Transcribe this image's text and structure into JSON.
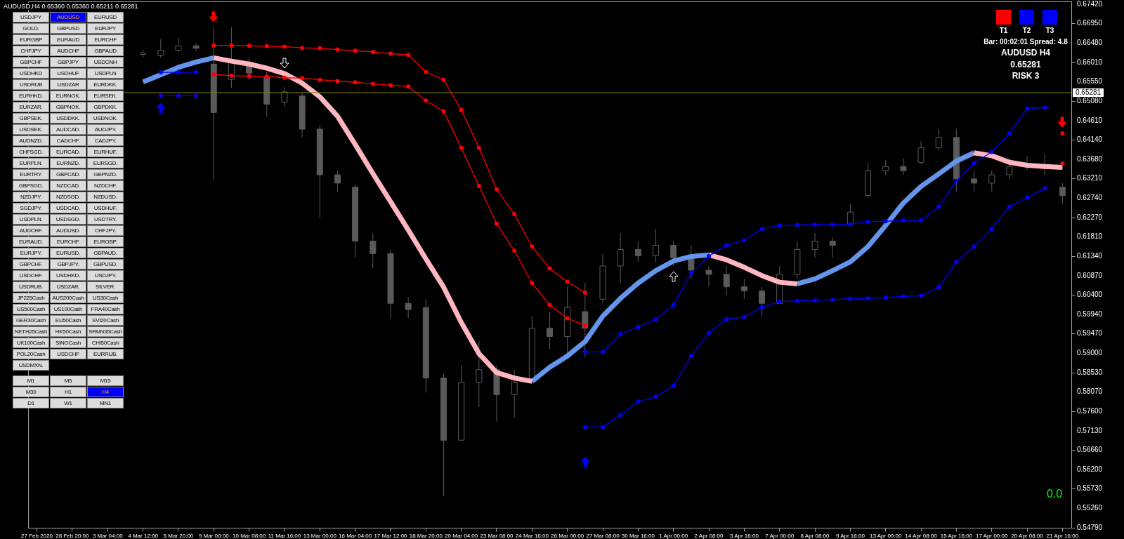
{
  "chart_data": {
    "type": "candlestick",
    "title": "AUDUSD,H4 0.65360 0.65360 0.65211 0.65281",
    "color": "#5a5a5a",
    "categories": [
      "27 Feb 2020",
      null,
      "28 Feb 20:00",
      null,
      "3 Mar 04:00",
      null,
      "4 Mar 12:00",
      null,
      "5 Mar 20:00",
      null,
      "9 Mar 00:00",
      null,
      "10 Mar 08:00",
      null,
      "11 Mar 16:00",
      null,
      "13 Mar 00:00",
      null,
      "16 Mar 04:00",
      null,
      "17 Mar 12:00",
      null,
      "18 Mar 20:00",
      null,
      "20 Mar 04:00",
      null,
      "23 Mar 08:00",
      null,
      "24 Mar 16:00",
      null,
      "26 Mar 00:00",
      null,
      "27 Mar 08:00",
      null,
      "30 Mar 16:00",
      null,
      "1 Apr 00:00",
      null,
      "2 Apr 08:00",
      null,
      "3 Apr 16:00",
      null,
      "7 Apr 00:00",
      null,
      "8 Apr 08:00",
      null,
      "9 Apr 16:00",
      null,
      "13 Apr 00:00",
      null,
      "14 Apr 08:00",
      null,
      "15 Apr 16:00",
      null,
      "17 Apr 00:00",
      null,
      "20 Apr 08:00",
      null,
      "21 Apr 16:00"
    ],
    "ohlc": [
      null,
      null,
      null,
      null,
      null,
      null,
      [
        0.662,
        0.6632,
        0.6612,
        0.6624
      ],
      [
        0.6618,
        0.6657,
        0.6612,
        0.663
      ],
      [
        0.663,
        0.666,
        0.6625,
        0.6641
      ],
      [
        0.6641,
        0.6648,
        0.6628,
        0.6635
      ],
      [
        0.6597,
        0.6686,
        0.6318,
        0.648
      ],
      [
        0.656,
        0.6686,
        0.654,
        0.66
      ],
      [
        0.66,
        0.6612,
        0.6558,
        0.6575
      ],
      [
        0.6565,
        0.6578,
        0.647,
        0.65
      ],
      [
        0.6505,
        0.6542,
        0.6495,
        0.653
      ],
      [
        0.652,
        0.6528,
        0.642,
        0.644
      ],
      [
        0.644,
        0.645,
        0.6227,
        0.633
      ],
      [
        0.633,
        0.634,
        0.629,
        0.631
      ],
      [
        0.63,
        0.6305,
        0.613,
        0.617
      ],
      [
        0.617,
        0.619,
        0.6105,
        0.614
      ],
      [
        0.614,
        0.615,
        0.5985,
        0.602
      ],
      [
        0.602,
        0.6035,
        0.5985,
        0.6005
      ],
      [
        0.601,
        0.603,
        0.5805,
        0.584
      ],
      [
        0.584,
        0.585,
        0.5555,
        0.569
      ],
      [
        0.569,
        0.587,
        0.569,
        0.583
      ],
      [
        0.583,
        0.593,
        0.577,
        0.586
      ],
      [
        0.586,
        0.587,
        0.5735,
        0.58
      ],
      [
        0.58,
        0.586,
        0.5745,
        0.583
      ],
      [
        0.5835,
        0.599,
        0.583,
        0.596
      ],
      [
        0.596,
        0.6,
        0.591,
        0.594
      ],
      [
        0.594,
        0.606,
        0.59,
        0.601
      ],
      [
        0.6,
        0.607,
        0.589,
        0.596
      ],
      [
        0.603,
        0.614,
        0.602,
        0.611
      ],
      [
        0.611,
        0.619,
        0.607,
        0.615
      ],
      [
        0.615,
        0.617,
        0.612,
        0.6135
      ],
      [
        0.6135,
        0.62,
        0.612,
        0.616
      ],
      [
        0.616,
        0.617,
        0.611,
        0.613
      ],
      [
        0.613,
        0.616,
        0.608,
        0.61
      ],
      [
        0.61,
        0.611,
        0.606,
        0.609
      ],
      [
        0.609,
        0.611,
        0.604,
        0.606
      ],
      [
        0.606,
        0.608,
        0.603,
        0.605
      ],
      [
        0.605,
        0.606,
        0.599,
        0.602
      ],
      [
        0.602,
        0.611,
        0.602,
        0.609
      ],
      [
        0.609,
        0.617,
        0.608,
        0.615
      ],
      [
        0.615,
        0.619,
        0.613,
        0.617
      ],
      [
        0.617,
        0.618,
        0.613,
        0.616
      ],
      [
        0.621,
        0.626,
        0.621,
        0.624
      ],
      [
        0.628,
        0.636,
        0.6275,
        0.634
      ],
      [
        0.634,
        0.6365,
        0.633,
        0.635
      ],
      [
        0.635,
        0.637,
        0.633,
        0.634
      ],
      [
        0.636,
        0.641,
        0.6355,
        0.6395
      ],
      [
        0.6395,
        0.644,
        0.639,
        0.642
      ],
      [
        0.642,
        0.644,
        0.629,
        0.632
      ],
      [
        0.632,
        0.634,
        0.629,
        0.631
      ],
      [
        0.631,
        0.634,
        0.629,
        0.633
      ],
      [
        0.633,
        0.637,
        0.632,
        0.635
      ],
      [
        0.635,
        0.6375,
        0.634,
        0.6355
      ],
      [
        0.6355,
        0.638,
        0.633,
        0.6345
      ],
      [
        0.63,
        0.631,
        0.626,
        0.628
      ]
    ],
    "series": [
      {
        "type": "line",
        "color": "#6495ed",
        "values": [
          null,
          null,
          null,
          null,
          null,
          null,
          0.6554,
          0.6571,
          0.6589,
          0.6602,
          0.6612,
          null,
          null,
          null,
          null,
          null,
          null,
          null,
          null,
          null,
          null,
          null,
          null,
          null,
          null,
          null,
          null,
          null,
          0.5832,
          0.5866,
          0.5893,
          0.5928,
          0.5989,
          0.6032,
          0.6069,
          0.6099,
          0.6122,
          0.6133,
          0.6137,
          null,
          null,
          null,
          null,
          0.6067,
          0.6079,
          0.6099,
          0.612,
          0.6157,
          0.6208,
          0.6262,
          0.6302,
          0.6332,
          0.6363,
          0.6383,
          null,
          null,
          null,
          null,
          null
        ]
      },
      {
        "type": "line",
        "color": "#ffb6c1",
        "values": [
          null,
          null,
          null,
          null,
          null,
          null,
          null,
          null,
          null,
          null,
          0.6612,
          0.6604,
          0.6597,
          0.6587,
          0.6574,
          0.6551,
          0.6518,
          0.6471,
          0.6403,
          0.6333,
          0.6265,
          0.6197,
          0.6127,
          0.6059,
          0.5974,
          0.5899,
          0.5853,
          0.584,
          0.5832,
          null,
          null,
          null,
          null,
          null,
          null,
          null,
          null,
          null,
          0.6137,
          0.6125,
          0.6107,
          0.6087,
          0.6071,
          0.6067,
          null,
          null,
          null,
          null,
          null,
          null,
          null,
          null,
          null,
          0.6383,
          0.6376,
          0.636,
          0.6353,
          0.635,
          0.6348
        ]
      },
      {
        "type": "line",
        "color": "#ff0000",
        "marker": "circle",
        "values": [
          null,
          null,
          null,
          null,
          null,
          null,
          null,
          null,
          null,
          null,
          0.6642,
          0.6642,
          0.6641,
          0.664,
          0.6639,
          0.6636,
          0.6635,
          0.6632,
          0.6629,
          0.6626,
          0.6622,
          0.6619,
          0.6578,
          0.6559,
          0.6486,
          0.6395,
          0.6295,
          0.6235,
          0.6157,
          0.6104,
          0.6072,
          0.6046,
          null,
          null,
          null,
          null,
          null,
          null,
          null,
          null,
          null,
          null,
          null,
          null,
          null,
          null,
          null,
          null,
          null,
          null,
          null,
          null,
          null,
          null,
          null,
          null,
          null,
          null,
          0.643
        ]
      },
      {
        "type": "line",
        "color": "#ff0000",
        "marker": "circle",
        "values": [
          null,
          null,
          null,
          null,
          null,
          null,
          null,
          null,
          null,
          null,
          0.6572,
          0.6569,
          0.6568,
          0.6567,
          0.6564,
          0.6563,
          0.6559,
          0.6556,
          0.6553,
          0.6549,
          0.6546,
          0.6543,
          0.6509,
          0.6483,
          0.6395,
          0.6303,
          0.6212,
          0.6147,
          0.6069,
          0.6016,
          0.5984,
          0.5967,
          null,
          null,
          null,
          null,
          null,
          null,
          null,
          null,
          null,
          null,
          null,
          null,
          null,
          null,
          null,
          null,
          null,
          null,
          null,
          null,
          null,
          null,
          null,
          null,
          null,
          null,
          0.6357
        ]
      },
      {
        "type": "line",
        "color": "#0000ff",
        "marker": "circle",
        "values": [
          null,
          null,
          null,
          null,
          null,
          null,
          null,
          0.6577,
          0.6577,
          0.6577,
          null,
          null,
          null,
          null,
          null,
          null,
          null,
          null,
          null,
          null,
          null,
          null,
          null,
          null,
          null,
          null,
          null,
          null,
          null,
          null,
          null,
          0.5903,
          0.5903,
          0.5946,
          0.5963,
          0.5981,
          0.6016,
          0.6094,
          0.6134,
          0.616,
          0.6172,
          0.62,
          0.6208,
          0.6209,
          0.621,
          0.621,
          0.6211,
          0.6217,
          0.6218,
          0.622,
          0.622,
          0.6253,
          0.6315,
          0.6358,
          0.6385,
          0.643,
          0.649,
          0.6492,
          null
        ]
      },
      {
        "type": "line",
        "color": "#0000ff",
        "marker": "circle",
        "values": [
          null,
          null,
          null,
          null,
          null,
          null,
          null,
          0.6521,
          0.6521,
          0.6521,
          null,
          null,
          null,
          null,
          null,
          null,
          null,
          null,
          null,
          null,
          null,
          null,
          null,
          null,
          null,
          null,
          null,
          null,
          null,
          null,
          null,
          0.5722,
          0.5722,
          0.5751,
          0.5783,
          0.5795,
          0.5821,
          0.5893,
          0.5949,
          0.5982,
          0.5987,
          0.6011,
          0.6024,
          0.6026,
          0.6027,
          0.6029,
          0.6031,
          0.6032,
          0.6034,
          0.6037,
          0.6038,
          0.6059,
          0.612,
          0.6157,
          0.62,
          0.6253,
          0.6275,
          0.6297,
          null
        ]
      }
    ],
    "ylim": [
      0.5479,
      0.6748
    ],
    "yticks": [
      {
        "value": 0.6742,
        "label": "0.67420"
      },
      {
        "value": 0.6695,
        "label": "0.66950"
      },
      {
        "value": 0.6648,
        "label": "0.66480"
      },
      {
        "value": 0.6601,
        "label": "0.66010"
      },
      {
        "value": 0.6555,
        "label": "0.65550"
      },
      {
        "value": 0.6508,
        "label": "0.65080"
      },
      {
        "value": 0.6461,
        "label": "0.64610"
      },
      {
        "value": 0.6414,
        "label": "0.64140"
      },
      {
        "value": 0.6368,
        "label": "0.63680"
      },
      {
        "value": 0.6321,
        "label": "0.63210"
      },
      {
        "value": 0.6274,
        "label": "0.62740"
      },
      {
        "value": 0.6227,
        "label": "0.62270"
      },
      {
        "value": 0.6181,
        "label": "0.61810"
      },
      {
        "value": 0.6134,
        "label": "0.61340"
      },
      {
        "value": 0.6087,
        "label": "0.60870"
      },
      {
        "value": 0.604,
        "label": "0.60400"
      },
      {
        "value": 0.5994,
        "label": "0.59940"
      },
      {
        "value": 0.5947,
        "label": "0.59470"
      },
      {
        "value": 0.59,
        "label": "0.59000"
      },
      {
        "value": 0.5853,
        "label": "0.58530"
      },
      {
        "value": 0.5807,
        "label": "0.58070"
      },
      {
        "value": 0.576,
        "label": "0.57600"
      },
      {
        "value": 0.5713,
        "label": "0.57130"
      },
      {
        "value": 0.5666,
        "label": "0.56660"
      },
      {
        "value": 0.562,
        "label": "0.56200"
      },
      {
        "value": 0.5573,
        "label": "0.55730"
      },
      {
        "value": 0.5526,
        "label": "0.55260"
      },
      {
        "value": 0.5479,
        "label": "0.54790"
      }
    ],
    "ref_lines": [
      {
        "axis": "y",
        "value": 0.65281,
        "label": "0.65281",
        "color": "#808000"
      }
    ],
    "annotations": [
      "T1",
      "T2",
      "T3",
      "Bar: 00:02:01 Spread: 4.8",
      "AUDUSD H4",
      "0.65281",
      "RISK 3",
      "0.0",
      "USDJPY",
      "AUDUSD",
      "EURUSD",
      "GOLD.",
      "GBPUSD",
      "EURJPY",
      "EURGBP",
      "EURAUD",
      "EURCHF",
      "CHFJPY",
      "AUDCHF",
      "GBPAUD",
      "GBPCHF",
      "GBPJPY",
      "USDCNH",
      "USDHKD",
      "USDHUF",
      "USDPLN",
      "USDRUB",
      "USDZAR",
      "EURDKK.",
      "EURHKD.",
      "EURNOK.",
      "EURSEK.",
      "EURZAR.",
      "GBPNOK.",
      "GBPDKK.",
      "GBPSEK.",
      "USDDKK.",
      "USDNOK.",
      "USDSEK.",
      "AUDCAD.",
      "AUDJPY.",
      "AUDNZD.",
      "CADCHF.",
      "CADJPY.",
      "CHFSGD.",
      "EURCAD.",
      "EURHUF.",
      "EURPLN.",
      "EURNZD.",
      "EURSGD.",
      "EURTRY.",
      "GBPCAD.",
      "GBPNZD.",
      "GBPSGD.",
      "NZDCAD.",
      "NZDCHF.",
      "NZDJPY.",
      "NZDSGD.",
      "NZDUSD.",
      "SGDJPY.",
      "USDCAD.",
      "USDHUF.",
      "USDPLN.",
      "USDSGD.",
      "USDTRY.",
      "AUDCHF.",
      "AUDUSD.",
      "CHFJPY.",
      "EURAUD.",
      "EURCHF.",
      "EURGBP.",
      "EURJPY.",
      "EURUSD.",
      "GBPAUD.",
      "GBPCHF.",
      "GBPJPY.",
      "GBPUSD.",
      "USDCHF.",
      "USDHKD.",
      "USDJPY.",
      "USDRUB.",
      "USDZAR.",
      "SILVER.",
      "JP225Cash",
      "AUS200Cash",
      "US30Cash",
      "US500Cash",
      "US100Cash",
      "FRA40Cash",
      "GER30Cash",
      "EU50Cash",
      "SVI20Cash",
      "NETH25Cash",
      "HK50Cash",
      "SPAIN35Cash",
      "UK100Cash",
      "SINGCash",
      "CHI50Cash",
      "POL20Cash",
      "USDCHF",
      "EURRUB.",
      "USDMXN.",
      "M1",
      "M5",
      "M15",
      "M30",
      "H1",
      "H4",
      "D1",
      "W1",
      "MN1"
    ]
  }
}
